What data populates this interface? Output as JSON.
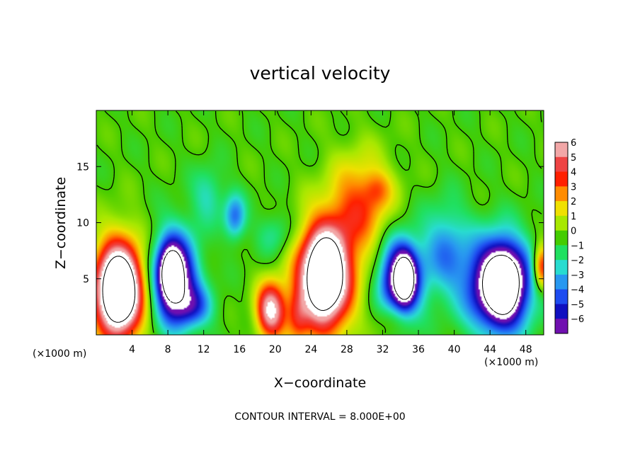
{
  "chart_data": {
    "type": "heatmap",
    "title": "vertical velocity",
    "xlabel": "X−coordinate",
    "ylabel": "Z−coordinate",
    "x_unit": "(×1000 m)",
    "x_unit_right": "(×1000 m)",
    "footer": "CONTOUR INTERVAL = 8.000E+00",
    "xlim": [
      0,
      50
    ],
    "ylim": [
      0,
      20
    ],
    "x_ticks": [
      "4",
      "8",
      "12",
      "16",
      "20",
      "24",
      "28",
      "32",
      "36",
      "40",
      "44",
      "48"
    ],
    "x_tick_values": [
      4,
      8,
      12,
      16,
      20,
      24,
      28,
      32,
      36,
      40,
      44,
      48
    ],
    "y_ticks": [
      "5",
      "10",
      "15"
    ],
    "y_tick_values": [
      5,
      10,
      15
    ],
    "colorbar": {
      "labels": [
        "6",
        "5",
        "4",
        "3",
        "2",
        "1",
        "0",
        "−1",
        "−2",
        "−3",
        "−4",
        "−5",
        "−6"
      ],
      "colors": [
        "#f2a7a7",
        "#ee4444",
        "#ff2000",
        "#ff8c00",
        "#f0e000",
        "#a8e800",
        "#44cc00",
        "#20e060",
        "#28dcd0",
        "#2898f0",
        "#1e4cf0",
        "#1010c0",
        "#7010b0"
      ]
    },
    "contour_interval": 8.0,
    "cells": [
      {
        "x": 2.5,
        "z": 4.0,
        "rx": 2.8,
        "rz": 4.5,
        "w": 9
      },
      {
        "x": 2.5,
        "z": 4.0,
        "rx": 1.8,
        "rz": 2.8,
        "w": 6
      },
      {
        "x": 19.5,
        "z": 2.2,
        "rx": 1.6,
        "rz": 2.4,
        "w": 7
      },
      {
        "x": 25.5,
        "z": 5.0,
        "rx": 3.2,
        "rz": 5.0,
        "w": 8
      },
      {
        "x": 25.5,
        "z": 5.5,
        "rx": 2.0,
        "rz": 3.2,
        "w": 6
      },
      {
        "x": 29.5,
        "z": 11.5,
        "rx": 3.5,
        "rz": 4.5,
        "w": 3.5
      },
      {
        "x": 31.5,
        "z": 13.0,
        "rx": 1.5,
        "rz": 1.5,
        "w": 1.5
      },
      {
        "x": 22.5,
        "z": 1.5,
        "rx": 1.2,
        "rz": 2.5,
        "w": 2.5
      },
      {
        "x": 33.0,
        "z": 1.5,
        "rx": 1.8,
        "rz": 1.8,
        "w": 1.5
      },
      {
        "x": 49.8,
        "z": 6.0,
        "rx": 1.0,
        "rz": 2.0,
        "w": 5
      },
      {
        "x": 8.8,
        "z": 5.0,
        "rx": 2.4,
        "rz": 4.0,
        "w": -8
      },
      {
        "x": 8.3,
        "z": 5.5,
        "rx": 1.2,
        "rz": 2.2,
        "w": -6
      },
      {
        "x": 15.5,
        "z": 10.5,
        "rx": 1.2,
        "rz": 2.0,
        "w": -3.5
      },
      {
        "x": 12.5,
        "z": 12.5,
        "rx": 1.8,
        "rz": 2.5,
        "w": -1.8
      },
      {
        "x": 34.0,
        "z": 5.0,
        "rx": 2.3,
        "rz": 3.5,
        "w": -8
      },
      {
        "x": 34.5,
        "z": 5.0,
        "rx": 1.0,
        "rz": 2.0,
        "w": -6
      },
      {
        "x": 45.0,
        "z": 4.5,
        "rx": 3.5,
        "rz": 4.0,
        "w": -9
      },
      {
        "x": 45.5,
        "z": 4.5,
        "rx": 1.8,
        "rz": 2.8,
        "w": -6
      },
      {
        "x": 39.0,
        "z": 7.5,
        "rx": 2.5,
        "rz": 4.0,
        "w": -3
      },
      {
        "x": 11.0,
        "z": 2.5,
        "rx": 2.2,
        "rz": 1.8,
        "w": -3
      },
      {
        "x": 20.0,
        "z": 9.0,
        "rx": 2.0,
        "rz": 2.0,
        "w": -1.5
      }
    ]
  }
}
